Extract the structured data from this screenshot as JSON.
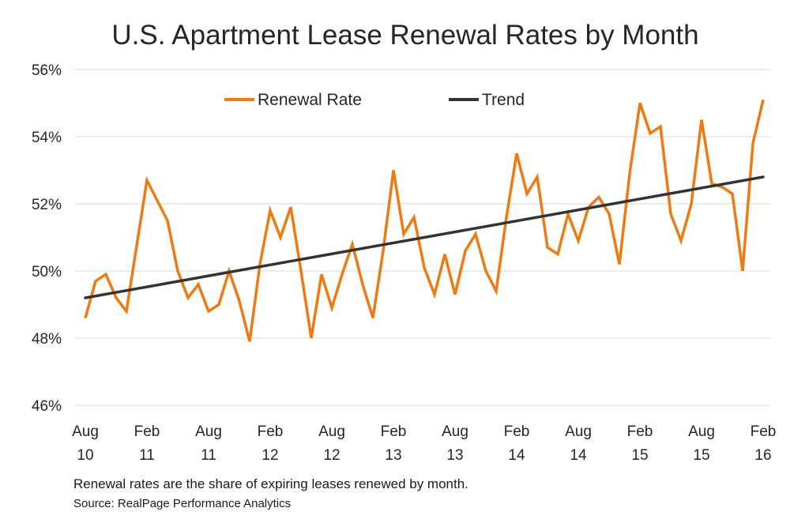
{
  "chart_data": {
    "type": "line",
    "title": "U.S. Apartment Lease Renewal Rates by Month",
    "ylim": [
      46,
      56
    ],
    "y_ticks": [
      "46%",
      "48%",
      "50%",
      "52%",
      "54%",
      "56%"
    ],
    "x_ticks": [
      [
        "Aug",
        "10"
      ],
      [
        "Feb",
        "11"
      ],
      [
        "Aug",
        "11"
      ],
      [
        "Feb",
        "12"
      ],
      [
        "Aug",
        "12"
      ],
      [
        "Feb",
        "13"
      ],
      [
        "Aug",
        "13"
      ],
      [
        "Feb",
        "14"
      ],
      [
        "Aug",
        "14"
      ],
      [
        "Feb",
        "15"
      ],
      [
        "Aug",
        "15"
      ],
      [
        "Feb",
        "16"
      ]
    ],
    "x_range": [
      "Aug 2010",
      "Feb 2016"
    ],
    "grid": "horizontal",
    "legend_position": "top",
    "series": [
      {
        "name": "Renewal Rate",
        "color": "#F07A12",
        "values": [
          48.6,
          49.7,
          49.9,
          49.2,
          48.8,
          50.75,
          52.7,
          52.1,
          51.5,
          50.0,
          49.2,
          49.6,
          48.8,
          49.0,
          50.0,
          49.1,
          47.9,
          50.2,
          51.8,
          51.0,
          51.9,
          50.0,
          48.0,
          49.9,
          48.9,
          49.9,
          50.8,
          49.6,
          48.6,
          50.6,
          53.0,
          51.1,
          51.6,
          50.1,
          49.3,
          50.5,
          49.3,
          50.6,
          51.1,
          50.0,
          49.4,
          51.6,
          53.5,
          52.3,
          52.8,
          50.7,
          50.5,
          51.7,
          50.9,
          51.9,
          52.2,
          51.7,
          50.2,
          52.9,
          55.0,
          54.1,
          54.3,
          51.7,
          50.9,
          52.0,
          54.5,
          52.6,
          52.5,
          52.3,
          50.0,
          53.8,
          55.1
        ]
      },
      {
        "name": "Trend",
        "color": "#333333",
        "values": [
          49.2,
          52.8
        ]
      }
    ]
  },
  "footnote": "Renewal rates are the share of expiring leases renewed by month.",
  "source": "Source: RealPage Performance Analytics"
}
